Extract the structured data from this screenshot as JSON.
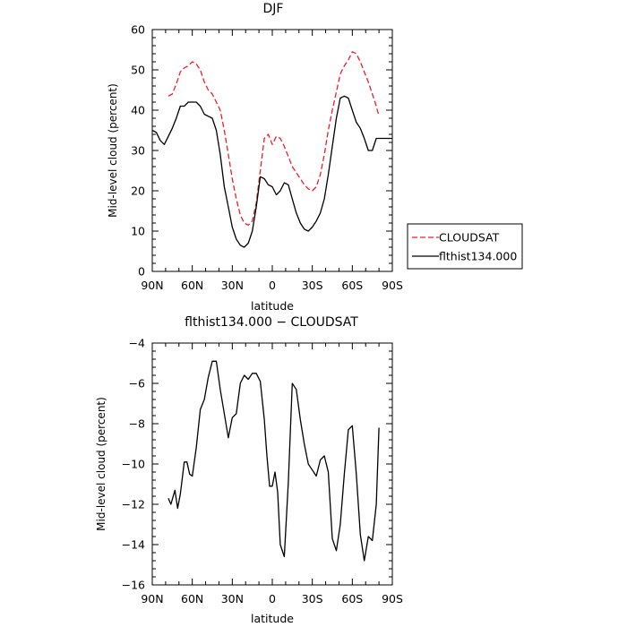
{
  "chart_data": [
    {
      "type": "line",
      "title": "DJF",
      "xlabel": "latitude",
      "ylabel": "Mid-level cloud (percent)",
      "xlim": [
        90,
        -90
      ],
      "ylim": [
        0,
        60
      ],
      "xticks": [
        {
          "value": 90,
          "label": "90N"
        },
        {
          "value": 60,
          "label": "60N"
        },
        {
          "value": 30,
          "label": "30N"
        },
        {
          "value": 0,
          "label": "0"
        },
        {
          "value": -30,
          "label": "30S"
        },
        {
          "value": -60,
          "label": "60S"
        },
        {
          "value": -90,
          "label": "90S"
        }
      ],
      "yticks": [
        0,
        10,
        20,
        30,
        40,
        50,
        60
      ],
      "legend": {
        "placement": "outside-right"
      },
      "series": [
        {
          "name": "CLOUDSAT",
          "color": "#e8202a",
          "dash": "dashed",
          "x": [
            78,
            75,
            72,
            69,
            66,
            63,
            60,
            57,
            54,
            51,
            48,
            45,
            42,
            39,
            36,
            33,
            30,
            27,
            24,
            21,
            18,
            15,
            12,
            9,
            6,
            3,
            0,
            -3,
            -6,
            -9,
            -12,
            -15,
            -18,
            -21,
            -24,
            -27,
            -30,
            -33,
            -36,
            -39,
            -42,
            -45,
            -48,
            -51,
            -54,
            -57,
            -60,
            -63,
            -66,
            -69,
            -72,
            -75,
            -78,
            -80
          ],
          "values": [
            43.5,
            44,
            46.5,
            49.5,
            50.5,
            51,
            52,
            51.5,
            50,
            47,
            45,
            44,
            42,
            40,
            35,
            29,
            23,
            18,
            14,
            12,
            11.5,
            12.5,
            17,
            25,
            33,
            34,
            31.5,
            33.5,
            33,
            31,
            28.5,
            26,
            24.5,
            23,
            21.5,
            20.5,
            20,
            21,
            24,
            29,
            35,
            40,
            44.5,
            49,
            51,
            52.5,
            54.5,
            54,
            52,
            49.5,
            47,
            44,
            41,
            38.5
          ]
        },
        {
          "name": "flthist134.000",
          "color": "#000000",
          "dash": "solid",
          "x": [
            90,
            87,
            84,
            81,
            78,
            75,
            72,
            69,
            66,
            63,
            60,
            57,
            54,
            51,
            48,
            45,
            42,
            39,
            36,
            33,
            30,
            27,
            24,
            21,
            18,
            15,
            12,
            9,
            6,
            3,
            0,
            -3,
            -6,
            -9,
            -12,
            -15,
            -18,
            -21,
            -24,
            -27,
            -30,
            -33,
            -36,
            -39,
            -42,
            -45,
            -48,
            -51,
            -54,
            -57,
            -60,
            -63,
            -66,
            -69,
            -72,
            -75,
            -78,
            -81,
            -84,
            -87,
            -90
          ],
          "values": [
            35,
            34.5,
            32.5,
            31.5,
            33.5,
            35.5,
            38,
            41,
            41,
            42,
            42,
            42,
            41,
            39,
            38.5,
            38,
            35,
            29,
            21,
            16,
            11,
            8,
            6.5,
            6,
            7,
            10,
            16,
            23.5,
            23,
            21.5,
            21,
            19,
            20,
            22,
            21.5,
            18,
            14.5,
            12,
            10.5,
            10,
            11,
            12.5,
            14.5,
            18,
            24,
            31,
            38,
            43,
            43.5,
            43,
            40,
            37,
            35.5,
            33,
            30,
            30,
            33,
            33,
            33,
            33,
            33
          ]
        }
      ]
    },
    {
      "type": "line",
      "title": "flthist134.000 − CLOUDSAT",
      "xlabel": "latitude",
      "ylabel": "Mid-level cloud (percent)",
      "xlim": [
        90,
        -90
      ],
      "ylim": [
        -16,
        -4
      ],
      "xticks": [
        {
          "value": 90,
          "label": "90N"
        },
        {
          "value": 60,
          "label": "60N"
        },
        {
          "value": 30,
          "label": "30N"
        },
        {
          "value": 0,
          "label": "0"
        },
        {
          "value": -30,
          "label": "30S"
        },
        {
          "value": -60,
          "label": "60S"
        },
        {
          "value": -90,
          "label": "90S"
        }
      ],
      "yticks": [
        -16,
        -14,
        -12,
        -10,
        -8,
        -6,
        -4
      ],
      "series": [
        {
          "color": "#000000",
          "dash": "solid",
          "x": [
            78,
            76,
            73,
            71,
            69,
            66,
            64,
            62,
            60,
            57,
            54,
            51,
            48,
            45,
            42,
            39,
            36,
            33,
            30,
            27,
            24,
            21,
            18,
            15,
            12,
            9,
            6,
            4,
            2,
            0,
            -2,
            -4,
            -6,
            -9,
            -12,
            -15,
            -18,
            -21,
            -24,
            -27,
            -30,
            -33,
            -36,
            -39,
            -42,
            -45,
            -48,
            -51,
            -54,
            -57,
            -60,
            -63,
            -66,
            -69,
            -72,
            -75,
            -78,
            -80
          ],
          "values": [
            -11.7,
            -12,
            -11.3,
            -12.2,
            -11.5,
            -9.9,
            -9.9,
            -10.5,
            -10.6,
            -9.2,
            -7.3,
            -6.8,
            -5.7,
            -4.9,
            -4.9,
            -6.3,
            -7.5,
            -8.7,
            -7.7,
            -7.5,
            -6,
            -5.6,
            -5.8,
            -5.5,
            -5.5,
            -5.9,
            -7.8,
            -9.6,
            -11.1,
            -11.1,
            -10.4,
            -11.4,
            -14,
            -14.6,
            -10.9,
            -6,
            -6.3,
            -7.8,
            -9,
            -10,
            -10.3,
            -10.6,
            -9.8,
            -9.6,
            -10.4,
            -13.7,
            -14.3,
            -13,
            -10.5,
            -8.3,
            -8.1,
            -10.5,
            -13.5,
            -14.8,
            -13.6,
            -13.8,
            -12,
            -8.2
          ]
        }
      ]
    }
  ]
}
